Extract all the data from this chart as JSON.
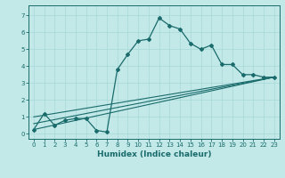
{
  "title": "",
  "xlabel": "Humidex (Indice chaleur)",
  "ylabel": "",
  "bg_color": "#c2e8e8",
  "line_color": "#1a6b6b",
  "xlim": [
    -0.5,
    23.5
  ],
  "ylim": [
    -0.3,
    7.6
  ],
  "xticks": [
    0,
    1,
    2,
    3,
    4,
    5,
    6,
    7,
    8,
    9,
    10,
    11,
    12,
    13,
    14,
    15,
    16,
    17,
    18,
    19,
    20,
    21,
    22,
    23
  ],
  "yticks": [
    0,
    1,
    2,
    3,
    4,
    5,
    6,
    7
  ],
  "main_series_x": [
    0,
    1,
    2,
    3,
    4,
    5,
    6,
    7,
    8,
    9,
    10,
    11,
    12,
    13,
    14,
    15,
    16,
    17,
    18,
    19,
    20,
    21,
    22,
    23
  ],
  "main_series_y": [
    0.25,
    1.2,
    0.5,
    0.8,
    0.9,
    0.9,
    0.2,
    0.1,
    3.8,
    4.7,
    5.5,
    5.6,
    6.85,
    6.4,
    6.2,
    5.35,
    5.0,
    5.25,
    4.1,
    4.1,
    3.5,
    3.5,
    3.35,
    3.35
  ],
  "line2_x": [
    0,
    23
  ],
  "line2_y": [
    0.25,
    3.35
  ],
  "line3_x": [
    0,
    23
  ],
  "line3_y": [
    0.6,
    3.35
  ],
  "line4_x": [
    0,
    23
  ],
  "line4_y": [
    1.0,
    3.35
  ],
  "grid_color": "#a8d8d8",
  "xlabel_fontsize": 6.5,
  "tick_fontsize": 5.0
}
